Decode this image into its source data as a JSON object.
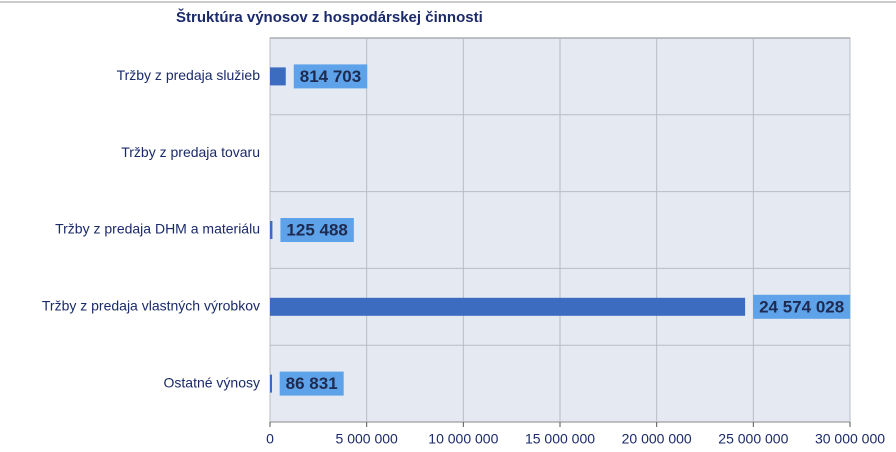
{
  "chart_data": {
    "type": "bar",
    "orientation": "horizontal",
    "title": "Štruktúra výnosov z hospodárskej činnosti",
    "categories": [
      "Tržby z predaja služieb",
      "Tržby z predaja tovaru",
      "Tržby z predaja DHM a materiálu",
      "Tržby z predaja vlastných výrobkov",
      "Ostatné výnosy"
    ],
    "values": [
      814703,
      null,
      125488,
      24574028,
      86831
    ],
    "value_labels": [
      "814 703",
      null,
      "125 488",
      "24 574 028",
      "86 831"
    ],
    "color": "#3b6cc0",
    "xlim": [
      0,
      30000000
    ],
    "xticks": [
      0,
      {
        "value": 5000000,
        "label": "5 000 000"
      },
      {
        "value": 10000000,
        "label": "10 000 000"
      },
      {
        "value": 15000000,
        "label": "15 000 000"
      },
      {
        "value": 20000000,
        "label": "20 000 000"
      },
      {
        "value": 25000000,
        "label": "25 000 000"
      },
      {
        "value": 30000000,
        "label": "30 000 000"
      }
    ],
    "grid": true
  }
}
